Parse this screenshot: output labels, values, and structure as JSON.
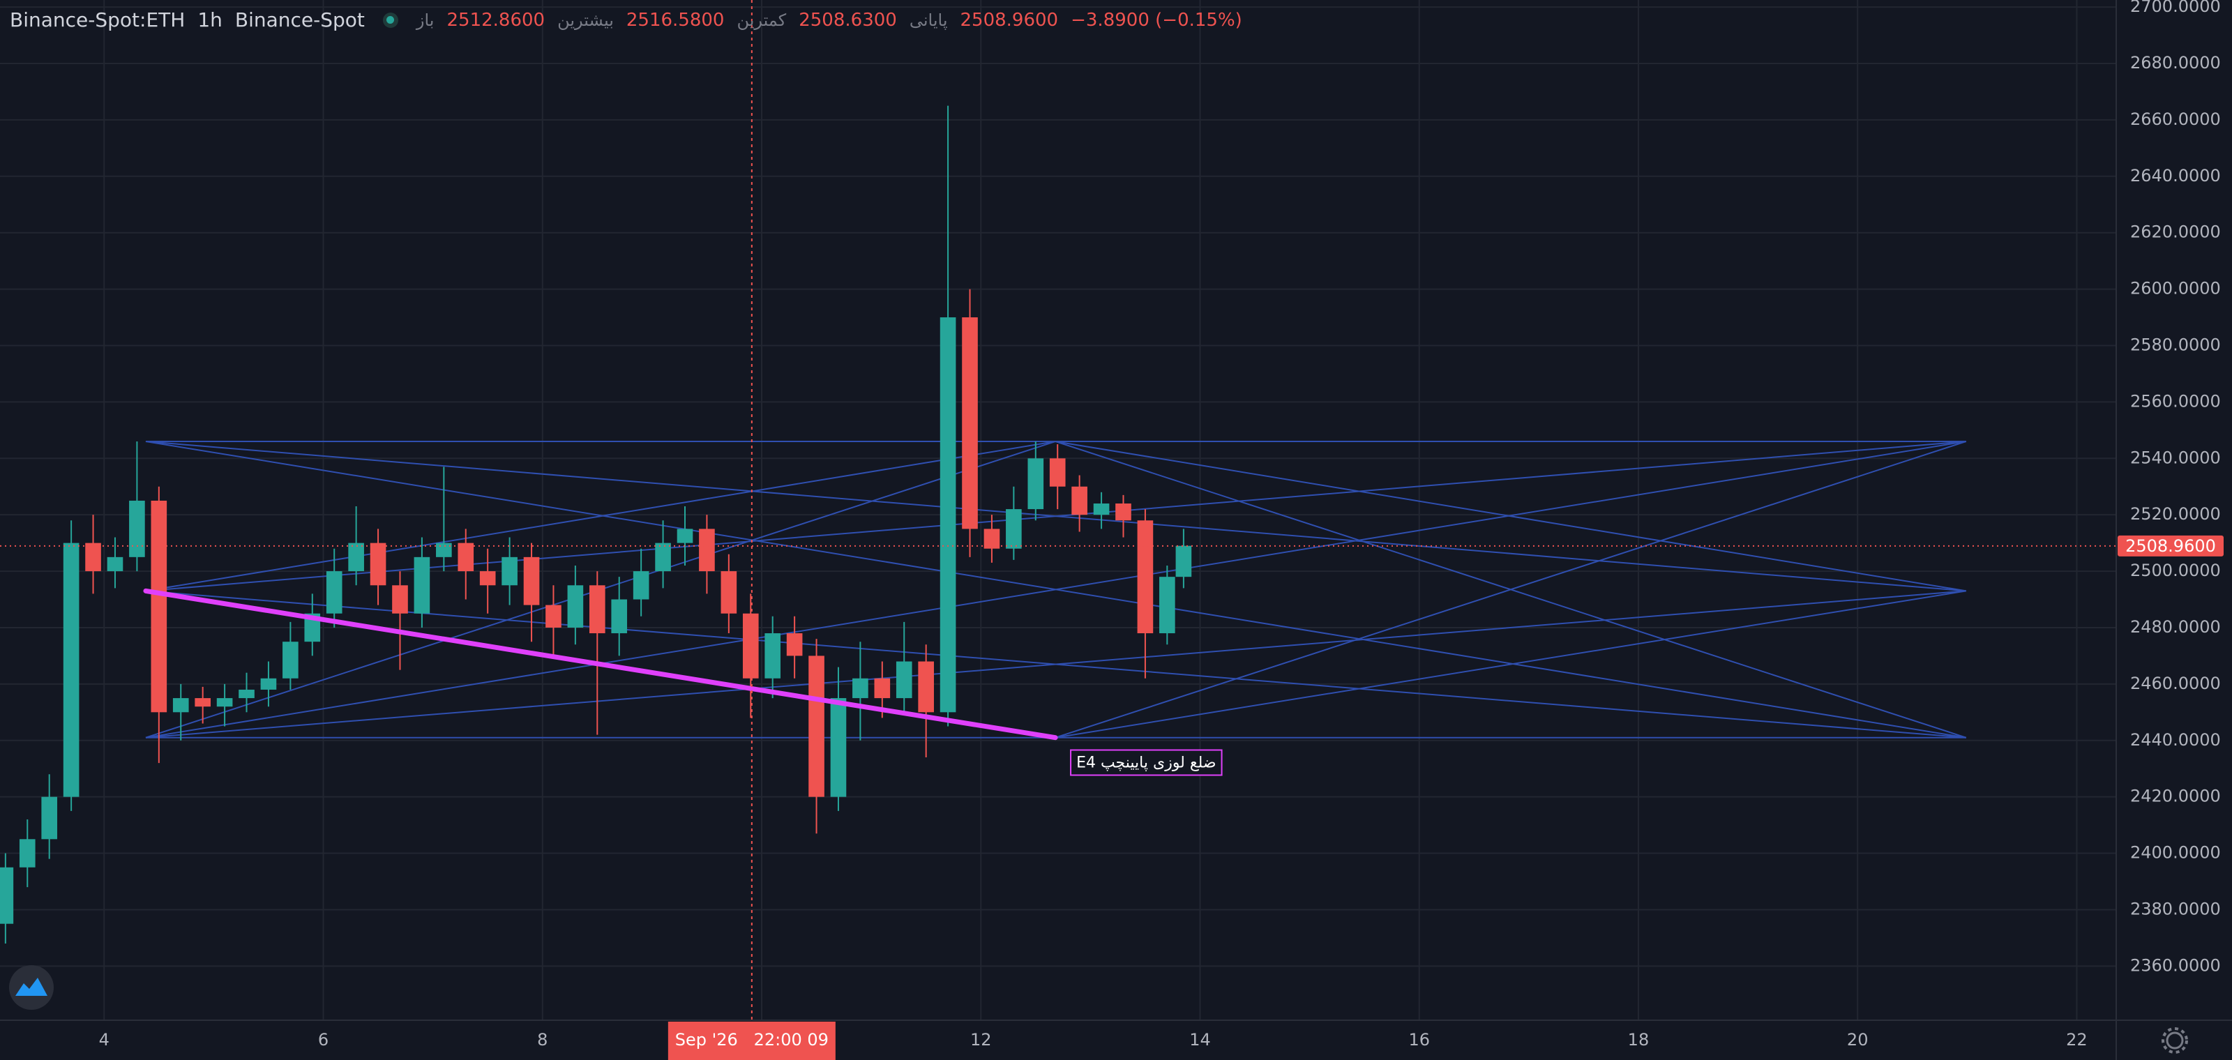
{
  "header": {
    "symbol": "Binance-Spot:ETH",
    "interval": "1h",
    "exchange": "Binance-Spot",
    "open_label": "باز",
    "open": "2512.8600",
    "high_label": "بیشترین",
    "high": "2516.5800",
    "low_label": "کمترین",
    "low": "2508.6300",
    "close_label": "پایانی",
    "close": "2508.9600",
    "change": "−3.8900 (−0.15%)"
  },
  "chart_data": {
    "type": "candlestick",
    "x": [
      3.1,
      3.3,
      3.5,
      3.7,
      3.9,
      4.1,
      4.3,
      4.5,
      4.7,
      4.9,
      5.1,
      5.3,
      5.5,
      5.7,
      5.9,
      6.1,
      6.3,
      6.5,
      6.7,
      6.9,
      7.1,
      7.3,
      7.5,
      7.7,
      7.9,
      8.1,
      8.3,
      8.5,
      8.7,
      8.9,
      9.1,
      9.3,
      9.5,
      9.7,
      9.9,
      10.1,
      10.3,
      10.5,
      10.7,
      10.9,
      11.1,
      11.3,
      11.5,
      11.7,
      11.9,
      12.1,
      12.3,
      12.5,
      12.7,
      12.9,
      13.1,
      13.3,
      13.5,
      13.7,
      13.85
    ],
    "open": [
      2375,
      2395,
      2405,
      2420,
      2510,
      2500,
      2505,
      2525,
      2450,
      2455,
      2452,
      2455,
      2458,
      2462,
      2475,
      2485,
      2500,
      2510,
      2495,
      2485,
      2505,
      2510,
      2500,
      2495,
      2505,
      2488,
      2480,
      2495,
      2478,
      2490,
      2500,
      2510,
      2515,
      2500,
      2485,
      2462,
      2478,
      2470,
      2420,
      2455,
      2462,
      2455,
      2468,
      2450,
      2590,
      2515,
      2508,
      2522,
      2540,
      2530,
      2520,
      2524,
      2518,
      2478,
      2498
    ],
    "high": [
      2400,
      2412,
      2428,
      2518,
      2520,
      2512,
      2546,
      2530,
      2460,
      2459,
      2460,
      2464,
      2468,
      2482,
      2492,
      2508,
      2523,
      2515,
      2500,
      2512,
      2537,
      2515,
      2508,
      2512,
      2510,
      2495,
      2502,
      2500,
      2498,
      2508,
      2518,
      2523,
      2520,
      2506,
      2492,
      2484,
      2484,
      2476,
      2466,
      2475,
      2468,
      2482,
      2474,
      2665,
      2600,
      2520,
      2530,
      2546,
      2545,
      2534,
      2528,
      2527,
      2522,
      2502,
      2515
    ],
    "low": [
      2368,
      2388,
      2398,
      2415,
      2492,
      2494,
      2500,
      2432,
      2440,
      2446,
      2445,
      2450,
      2452,
      2458,
      2470,
      2480,
      2495,
      2488,
      2465,
      2480,
      2500,
      2490,
      2485,
      2488,
      2475,
      2470,
      2474,
      2442,
      2470,
      2484,
      2494,
      2502,
      2492,
      2478,
      2448,
      2455,
      2462,
      2407,
      2415,
      2440,
      2448,
      2450,
      2434,
      2445,
      2505,
      2503,
      2504,
      2518,
      2522,
      2514,
      2515,
      2512,
      2462,
      2474,
      2494
    ],
    "close": [
      2395,
      2405,
      2420,
      2510,
      2500,
      2505,
      2525,
      2450,
      2455,
      2452,
      2455,
      2458,
      2462,
      2475,
      2485,
      2500,
      2510,
      2495,
      2485,
      2505,
      2510,
      2500,
      2495,
      2505,
      2488,
      2480,
      2495,
      2478,
      2490,
      2500,
      2510,
      2515,
      2500,
      2485,
      2462,
      2478,
      2470,
      2420,
      2455,
      2462,
      2455,
      2468,
      2450,
      2590,
      2515,
      2508,
      2522,
      2540,
      2530,
      2520,
      2524,
      2518,
      2478,
      2498,
      2509
    ],
    "up_color": "#26a69a",
    "down_color": "#ef5350",
    "xlim": [
      3.05,
      22.36
    ],
    "xticks": [
      4,
      6,
      8,
      10,
      12,
      14,
      16,
      18,
      20,
      22
    ],
    "ylim": [
      2340.8,
      2702.5
    ],
    "yticks": [
      {
        "value": 2360,
        "label": "2360.0000"
      },
      {
        "value": 2380,
        "label": "2380.0000"
      },
      {
        "value": 2400,
        "label": "2400.0000"
      },
      {
        "value": 2420,
        "label": "2420.0000"
      },
      {
        "value": 2440,
        "label": "2440.0000"
      },
      {
        "value": 2460,
        "label": "2460.0000"
      },
      {
        "value": 2480,
        "label": "2480.0000"
      },
      {
        "value": 2500,
        "label": "2500.0000"
      },
      {
        "value": 2520,
        "label": "2520.0000"
      },
      {
        "value": 2540,
        "label": "2540.0000"
      },
      {
        "value": 2560,
        "label": "2560.0000"
      },
      {
        "value": 2580,
        "label": "2580.0000"
      },
      {
        "value": 2600,
        "label": "2600.0000"
      },
      {
        "value": 2620,
        "label": "2620.0000"
      },
      {
        "value": 2640,
        "label": "2640.0000"
      },
      {
        "value": 2660,
        "label": "2660.0000"
      },
      {
        "value": 2680,
        "label": "2680.0000"
      },
      {
        "value": 2700,
        "label": "2700.0000"
      }
    ],
    "grid": true,
    "last_price": {
      "value": 2508.96,
      "label": "2508.9600"
    },
    "crosshair": {
      "x": 9.91,
      "label": "Sep '26   22:00 09"
    },
    "trend_line": {
      "color": "#e040fb",
      "x": [
        4.38,
        12.68
      ],
      "y": [
        2493,
        2441
      ]
    },
    "fan_color": "#2f4fb0",
    "fan_lines": [
      {
        "x": [
          4.38,
          12.68
        ],
        "y": [
          2546,
          2546
        ]
      },
      {
        "x": [
          12.68,
          20.99
        ],
        "y": [
          2546,
          2546
        ]
      },
      {
        "x": [
          4.38,
          12.68
        ],
        "y": [
          2441,
          2441
        ]
      },
      {
        "x": [
          12.68,
          20.99
        ],
        "y": [
          2441,
          2441
        ]
      },
      {
        "x": [
          4.38,
          20.99
        ],
        "y": [
          2546,
          2493
        ]
      },
      {
        "x": [
          4.38,
          20.99
        ],
        "y": [
          2546,
          2441
        ]
      },
      {
        "x": [
          4.38,
          12.68
        ],
        "y": [
          2493,
          2546
        ]
      },
      {
        "x": [
          4.38,
          12.68
        ],
        "y": [
          2441,
          2546
        ]
      },
      {
        "x": [
          4.38,
          20.99
        ],
        "y": [
          2493,
          2546
        ]
      },
      {
        "x": [
          4.38,
          20.99
        ],
        "y": [
          2441,
          2546
        ]
      },
      {
        "x": [
          12.68,
          20.99
        ],
        "y": [
          2546,
          2493
        ]
      },
      {
        "x": [
          12.68,
          20.99
        ],
        "y": [
          2546,
          2441
        ]
      },
      {
        "x": [
          12.68,
          20.99
        ],
        "y": [
          2441,
          2546
        ]
      },
      {
        "x": [
          12.68,
          20.99
        ],
        "y": [
          2441,
          2493
        ]
      },
      {
        "x": [
          4.38,
          20.99
        ],
        "y": [
          2493,
          2441
        ]
      },
      {
        "x": [
          4.38,
          20.99
        ],
        "y": [
          2441,
          2493
        ]
      }
    ],
    "annotation": {
      "text": "E4 ضلع لوزی پایینچپ",
      "color": "#e040fb",
      "x": 12.82,
      "y": 2436.6
    }
  }
}
